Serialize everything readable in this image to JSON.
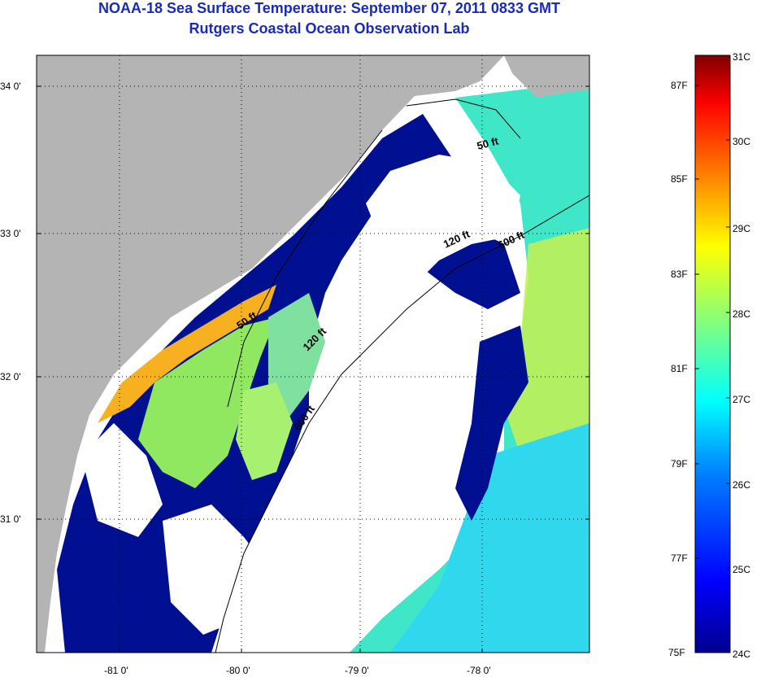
{
  "header": {
    "title": "NOAA-18 Sea Surface Temperature:  September 07, 2011 0833 GMT",
    "subtitle": "Rutgers Coastal Ocean Observation Lab"
  },
  "map": {
    "lon_ticks": [
      "-81 0'",
      "-80 0'",
      "-79 0'",
      "-78 0'"
    ],
    "lat_ticks": [
      "34 0'",
      "33 0'",
      "32 0'",
      "31 0'"
    ],
    "contour_labels": [
      "50 ft",
      "120 ft",
      "600 ft",
      "50 ft",
      "120 ft",
      "600 ft"
    ],
    "colors": {
      "land": "#b4b4b4",
      "cloud": "#ffffff",
      "cold_water": "#000f8c",
      "grid": "#000000"
    }
  },
  "colorbar": {
    "celsius": [
      "31C",
      "30C",
      "29C",
      "28C",
      "27C",
      "26C",
      "25C",
      "24C"
    ],
    "fahrenheit": [
      "87F",
      "85F",
      "83F",
      "81F",
      "79F",
      "77F",
      "75F"
    ],
    "colors": [
      "#7f0000",
      "#ff0000",
      "#ff8000",
      "#ffff00",
      "#80ff80",
      "#00ffff",
      "#0080ff",
      "#0000ff",
      "#00008f"
    ]
  }
}
